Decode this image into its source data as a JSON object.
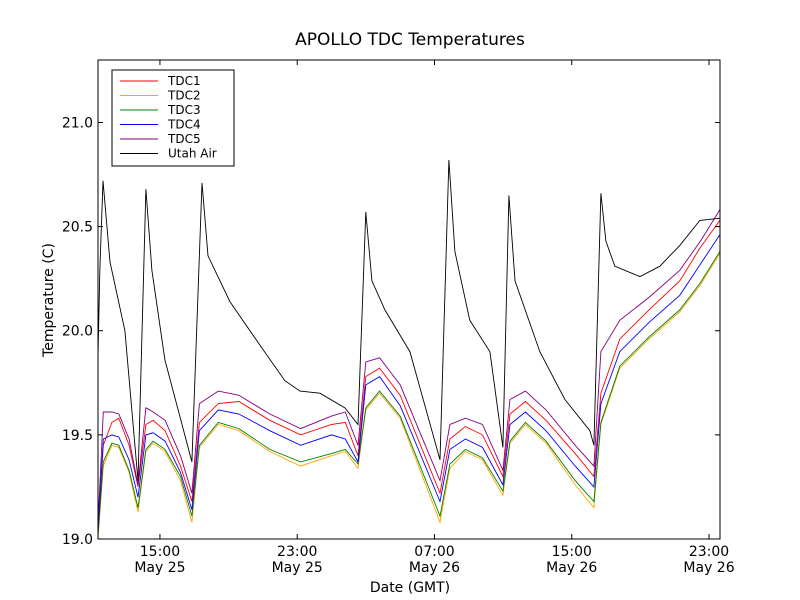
{
  "chart_data": {
    "type": "line",
    "title": "APOLLO TDC Temperatures",
    "xlabel": "Date (GMT)",
    "ylabel": "Temperature (C)",
    "x_units": "hours since 00:00 May 25 (GMT)",
    "xlim": [
      11.39,
      47.64
    ],
    "ylim": [
      19.0,
      21.3
    ],
    "grid": false,
    "legend_position": "top-left",
    "x_ticks": [
      {
        "value": 15,
        "time": "15:00",
        "date": "May 25"
      },
      {
        "value": 23,
        "time": "23:00",
        "date": "May 25"
      },
      {
        "value": 31,
        "time": "07:00",
        "date": "May 26"
      },
      {
        "value": 39,
        "time": "15:00",
        "date": "May 26"
      },
      {
        "value": 47,
        "time": "23:00",
        "date": "May 26"
      }
    ],
    "y_ticks": [
      {
        "value": 19.0,
        "label": "19.0"
      },
      {
        "value": 19.5,
        "label": "19.5"
      },
      {
        "value": 20.0,
        "label": "20.0"
      },
      {
        "value": 20.5,
        "label": "20.5"
      },
      {
        "value": 21.0,
        "label": "21.0"
      }
    ],
    "series": [
      {
        "name": "TDC1",
        "color": "#ff0000",
        "x": [
          11.39,
          11.7,
          12.2,
          12.6,
          13.2,
          13.72,
          14.18,
          14.6,
          15.3,
          16.2,
          16.86,
          17.3,
          18.4,
          19.6,
          21.4,
          23.2,
          25.0,
          25.8,
          26.54,
          27.0,
          27.8,
          29.0,
          31.32,
          31.9,
          32.8,
          33.8,
          34.99,
          35.4,
          36.3,
          37.5,
          39.2,
          40.29,
          40.7,
          41.8,
          43.5,
          45.3,
          46.5,
          47.63
        ],
        "y": [
          19.05,
          19.45,
          19.56,
          19.58,
          19.45,
          19.25,
          19.55,
          19.57,
          19.52,
          19.35,
          19.18,
          19.56,
          19.65,
          19.66,
          19.57,
          19.5,
          19.55,
          19.56,
          19.4,
          19.78,
          19.82,
          19.69,
          19.22,
          19.48,
          19.54,
          19.5,
          19.3,
          19.6,
          19.66,
          19.57,
          19.41,
          19.3,
          19.7,
          19.96,
          20.1,
          20.24,
          20.4,
          20.53
        ]
      },
      {
        "name": "TDC2",
        "color": "#ffa500",
        "x": [
          11.39,
          11.7,
          12.2,
          12.6,
          13.2,
          13.72,
          14.18,
          14.6,
          15.3,
          16.2,
          16.86,
          17.3,
          18.4,
          19.6,
          21.4,
          23.2,
          25.0,
          25.8,
          26.54,
          27.0,
          27.8,
          29.0,
          31.32,
          31.9,
          32.8,
          33.8,
          34.99,
          35.4,
          36.3,
          37.5,
          39.2,
          40.29,
          40.7,
          41.8,
          43.5,
          45.3,
          46.5,
          47.63
        ],
        "y": [
          19.0,
          19.35,
          19.45,
          19.44,
          19.32,
          19.13,
          19.42,
          19.46,
          19.42,
          19.28,
          19.08,
          19.44,
          19.55,
          19.52,
          19.42,
          19.35,
          19.4,
          19.42,
          19.34,
          19.62,
          19.7,
          19.58,
          19.08,
          19.34,
          19.42,
          19.38,
          19.21,
          19.46,
          19.55,
          19.46,
          19.26,
          19.15,
          19.55,
          19.82,
          19.96,
          20.09,
          20.22,
          20.37
        ]
      },
      {
        "name": "TDC3",
        "color": "#008000",
        "x": [
          11.39,
          11.7,
          12.2,
          12.6,
          13.2,
          13.72,
          14.18,
          14.6,
          15.3,
          16.2,
          16.86,
          17.3,
          18.4,
          19.6,
          21.4,
          23.2,
          25.0,
          25.8,
          26.54,
          27.0,
          27.8,
          29.0,
          31.32,
          31.9,
          32.8,
          33.8,
          34.99,
          35.4,
          36.3,
          37.5,
          39.2,
          40.29,
          40.7,
          41.8,
          43.5,
          45.3,
          46.5,
          47.63
        ],
        "y": [
          19.02,
          19.37,
          19.46,
          19.45,
          19.33,
          19.15,
          19.43,
          19.47,
          19.43,
          19.3,
          19.11,
          19.45,
          19.56,
          19.53,
          19.43,
          19.37,
          19.41,
          19.43,
          19.36,
          19.63,
          19.71,
          19.59,
          19.11,
          19.36,
          19.43,
          19.39,
          19.23,
          19.47,
          19.56,
          19.47,
          19.28,
          19.18,
          19.56,
          19.83,
          19.97,
          20.1,
          20.23,
          20.38
        ]
      },
      {
        "name": "TDC4",
        "color": "#0000ff",
        "x": [
          11.39,
          11.7,
          12.2,
          12.6,
          13.2,
          13.72,
          14.18,
          14.6,
          15.3,
          16.2,
          16.86,
          17.3,
          18.4,
          19.6,
          21.4,
          23.2,
          25.0,
          25.8,
          26.54,
          27.0,
          27.8,
          29.0,
          31.32,
          31.9,
          32.8,
          33.8,
          34.99,
          35.4,
          36.3,
          37.5,
          39.2,
          40.29,
          40.7,
          41.8,
          43.5,
          45.3,
          46.5,
          47.63
        ],
        "y": [
          19.04,
          19.48,
          19.5,
          19.49,
          19.38,
          19.2,
          19.5,
          19.51,
          19.47,
          19.32,
          19.14,
          19.52,
          19.62,
          19.6,
          19.52,
          19.45,
          19.5,
          19.48,
          19.37,
          19.74,
          19.78,
          19.64,
          19.18,
          19.43,
          19.48,
          19.44,
          19.26,
          19.55,
          19.61,
          19.52,
          19.35,
          19.25,
          19.65,
          19.9,
          20.04,
          20.17,
          20.32,
          20.46
        ]
      },
      {
        "name": "TDC5",
        "color": "#800080",
        "x": [
          11.39,
          11.7,
          12.2,
          12.6,
          13.2,
          13.72,
          14.18,
          14.6,
          15.3,
          16.2,
          16.86,
          17.3,
          18.4,
          19.6,
          21.4,
          23.2,
          25.0,
          25.8,
          26.54,
          27.0,
          27.8,
          29.0,
          31.32,
          31.9,
          32.8,
          33.8,
          34.99,
          35.4,
          36.3,
          37.5,
          39.2,
          40.29,
          40.7,
          41.8,
          43.5,
          45.3,
          46.5,
          47.63
        ],
        "y": [
          19.07,
          19.61,
          19.61,
          19.6,
          19.48,
          19.26,
          19.63,
          19.61,
          19.57,
          19.4,
          19.22,
          19.65,
          19.71,
          19.69,
          19.6,
          19.53,
          19.59,
          19.61,
          19.45,
          19.85,
          19.87,
          19.74,
          19.28,
          19.55,
          19.58,
          19.55,
          19.33,
          19.67,
          19.71,
          19.62,
          19.45,
          19.35,
          19.9,
          20.05,
          20.16,
          20.29,
          20.43,
          20.58
        ]
      },
      {
        "name": "Utah Air",
        "color": "#000000",
        "x": [
          11.39,
          11.5,
          11.68,
          12.09,
          12.96,
          13.72,
          14.18,
          14.53,
          15.29,
          16.86,
          17.45,
          17.8,
          19.08,
          20.83,
          22.28,
          23.16,
          24.32,
          25.78,
          26.54,
          27.0,
          27.35,
          28.11,
          29.57,
          31.32,
          31.84,
          32.19,
          33.06,
          34.23,
          34.99,
          35.34,
          35.69,
          37.14,
          38.6,
          40.06,
          40.29,
          40.7,
          40.99,
          41.51,
          42.97,
          44.14,
          45.3,
          46.47,
          47.63
        ],
        "y": [
          19.88,
          20.3,
          20.72,
          20.33,
          20.0,
          19.28,
          20.68,
          20.29,
          19.86,
          19.37,
          20.71,
          20.36,
          20.14,
          19.93,
          19.76,
          19.71,
          19.7,
          19.63,
          19.55,
          20.57,
          20.24,
          20.1,
          19.9,
          19.38,
          20.82,
          20.38,
          20.05,
          19.9,
          19.44,
          20.65,
          20.24,
          19.9,
          19.67,
          19.52,
          19.45,
          20.66,
          20.43,
          20.31,
          20.26,
          20.31,
          20.41,
          20.53,
          20.54
        ]
      }
    ]
  }
}
